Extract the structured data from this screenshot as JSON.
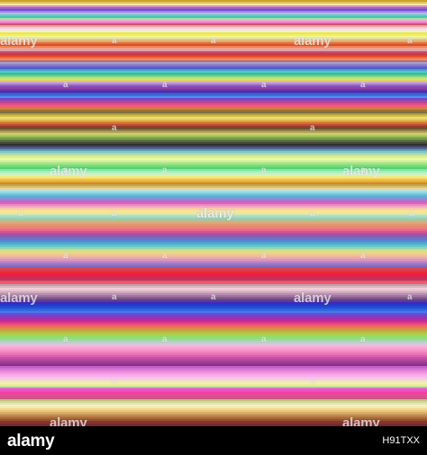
{
  "stripe_colors": [
    "#c9a52a",
    "#e6c060",
    "#f5e8a0",
    "#d68fd0",
    "#a060c8",
    "#7050d0",
    "#9a8ae0",
    "#b8b8e8",
    "#60d0c0",
    "#48c8b0",
    "#a8e0a8",
    "#f0a8d0",
    "#e880c0",
    "#d05070",
    "#e8a0a8",
    "#f8c8d8",
    "#e8e8f0",
    "#f8f0b0",
    "#e8e850",
    "#f0f060",
    "#f8f890",
    "#e8e8a8",
    "#d8c890",
    "#e8a860",
    "#e07040",
    "#d85030",
    "#f08050",
    "#f0a090",
    "#e0a0b0",
    "#c05060",
    "#d03848",
    "#e04030",
    "#f06838",
    "#e89060",
    "#c06878",
    "#a0a0c8",
    "#9080d0",
    "#7068c8",
    "#5060c0",
    "#40a8d0",
    "#50c8c8",
    "#40b890",
    "#60d080",
    "#a0e090",
    "#c8e870",
    "#e0d060",
    "#c8a0d0",
    "#a878c8",
    "#8850c0",
    "#9040b0",
    "#6838a8",
    "#4830a0",
    "#4058d0",
    "#3870e0",
    "#5090e8",
    "#7048c8",
    "#9848b8",
    "#c04890",
    "#e05080",
    "#f06070",
    "#e87050",
    "#c88040",
    "#a07030",
    "#807040",
    "#b0a040",
    "#d0c050",
    "#e8e070",
    "#f0c850",
    "#e89840",
    "#d07038",
    "#b85030",
    "#983828",
    "#705030",
    "#908048",
    "#b8a858",
    "#c8d070",
    "#a8c860",
    "#80b048",
    "#709048",
    "#586838",
    "#484840",
    "#303030",
    "#404868",
    "#506890",
    "#60a0b8",
    "#80c8c8",
    "#a8d8a8",
    "#c8e890",
    "#e0f090",
    "#f0f8a0",
    "#d8f0a0",
    "#b0e890",
    "#90e080",
    "#70d878",
    "#58d070",
    "#80e8a0",
    "#a0f0c0",
    "#c0f0d0",
    "#e0f0b0",
    "#f0e880",
    "#f8d860",
    "#f0c040",
    "#e8a838",
    "#d08830",
    "#c0a850",
    "#d8c070",
    "#e8d898",
    "#b8e0d8",
    "#90d8e0",
    "#70c8e0",
    "#60b0d8",
    "#8098d8",
    "#a080d0",
    "#c068c8",
    "#e060c0",
    "#f088c8",
    "#f8a8c0",
    "#f8c8a8",
    "#f8e090",
    "#f0e8a0",
    "#d8e8b0",
    "#b0e0c0",
    "#90d8d0",
    "#a0c8a0",
    "#c0b890",
    "#d8a878",
    "#e09868",
    "#e88878",
    "#f07880",
    "#e86888",
    "#d05890",
    "#b050a0",
    "#9058b0",
    "#7868c0",
    "#6878c8",
    "#5888d0",
    "#50a0d8",
    "#58b8d0",
    "#70c8c0",
    "#90d8b0",
    "#b0e0a0",
    "#d0e090",
    "#e8d888",
    "#f0c890",
    "#f0b8a0",
    "#e8a8b0",
    "#d898c0",
    "#c088c8",
    "#a878c8",
    "#9070c0",
    "#7868b8",
    "#d04858",
    "#e03848",
    "#f02838",
    "#e82040",
    "#d82848",
    "#c83058",
    "#b83868",
    "#f05060",
    "#e86070",
    "#c0a0a8",
    "#d8b8c0",
    "#f0d0d8",
    "#e8c0d0",
    "#d0a8c0",
    "#b890b0",
    "#a078a0",
    "#886090",
    "#704880",
    "#5838a0",
    "#4028b8",
    "#2838c8",
    "#2048d0",
    "#2858d8",
    "#3868e0",
    "#4878e8",
    "#6050d8",
    "#7840c8",
    "#9038b8",
    "#a830a8",
    "#c02898",
    "#d83088",
    "#e84878",
    "#f06068",
    "#e87858",
    "#d89048",
    "#c8a840",
    "#b8c048",
    "#a8d050",
    "#98d868",
    "#88e080",
    "#a0d8a0",
    "#b8d0c0",
    "#d0c8d8",
    "#e8c0e0",
    "#f0b0d8",
    "#f8a0d0",
    "#f890c8",
    "#f080c0",
    "#e870b8",
    "#d860b0",
    "#c850a8",
    "#b848a0",
    "#a84098",
    "#983890",
    "#883088",
    "#c060c8",
    "#d070d0",
    "#e080d8",
    "#f090e0",
    "#f8a0e8",
    "#f8b0f0",
    "#f8c0e8",
    "#f0d0d8",
    "#f8e0c8",
    "#f0f0b0",
    "#e8f0a0",
    "#c8e090",
    "#e068d0",
    "#f050c0",
    "#f848b0",
    "#f040a0",
    "#e84898",
    "#d85090",
    "#c85888",
    "#c0c080",
    "#d0d898",
    "#e0e8b0",
    "#f0f0c8",
    "#f8e8a8",
    "#f0d890",
    "#e8c878",
    "#d8b068",
    "#c89858",
    "#b88048",
    "#a86838",
    "#985030",
    "#883828",
    "#803030",
    "#702838"
  ],
  "watermarks": [
    {
      "text": "alamy",
      "kind": "big"
    },
    {
      "text": "a",
      "kind": "a"
    },
    {
      "text": "a",
      "kind": "a"
    },
    {
      "text": "alamy",
      "kind": "big"
    },
    {
      "text": "a",
      "kind": "a"
    },
    {
      "text": "a",
      "kind": "a"
    },
    {
      "text": "a",
      "kind": "a"
    },
    {
      "text": "a",
      "kind": "a"
    },
    {
      "text": "a",
      "kind": "a"
    },
    {
      "text": "a",
      "kind": "a"
    },
    {
      "text": "a",
      "kind": "a"
    },
    {
      "text": "a",
      "kind": "a"
    },
    {
      "text": "alamy",
      "kind": "big"
    },
    {
      "text": "a",
      "kind": "a"
    },
    {
      "text": "a",
      "kind": "a"
    },
    {
      "text": "alamy",
      "kind": "big"
    },
    {
      "text": "a",
      "kind": "a"
    },
    {
      "text": "a",
      "kind": "a"
    },
    {
      "text": "alamy",
      "kind": "big"
    },
    {
      "text": "alamy",
      "kind": "big"
    },
    {
      "text": "a",
      "kind": "a"
    },
    {
      "text": "a",
      "kind": "a"
    },
    {
      "text": "a",
      "kind": "a"
    },
    {
      "text": "a",
      "kind": "a"
    },
    {
      "text": "a",
      "kind": "a"
    },
    {
      "text": "a",
      "kind": "a"
    },
    {
      "text": "a",
      "kind": "a"
    },
    {
      "text": "a",
      "kind": "a"
    },
    {
      "text": "alamy",
      "kind": "big"
    },
    {
      "text": "a",
      "kind": "a"
    },
    {
      "text": "a",
      "kind": "a"
    },
    {
      "text": "alamy",
      "kind": "big"
    },
    {
      "text": "a",
      "kind": "a"
    },
    {
      "text": "a",
      "kind": "a"
    },
    {
      "text": "a",
      "kind": "a"
    },
    {
      "text": "a",
      "kind": "a"
    },
    {
      "text": "a",
      "kind": "a"
    },
    {
      "text": "a",
      "kind": "a"
    },
    {
      "text": "a",
      "kind": "a"
    },
    {
      "text": "a",
      "kind": "a"
    },
    {
      "text": "alamy",
      "kind": "big"
    },
    {
      "text": "alamy",
      "kind": "big"
    }
  ],
  "footer": {
    "logo": "alamy",
    "image_id": "H91TXX"
  }
}
